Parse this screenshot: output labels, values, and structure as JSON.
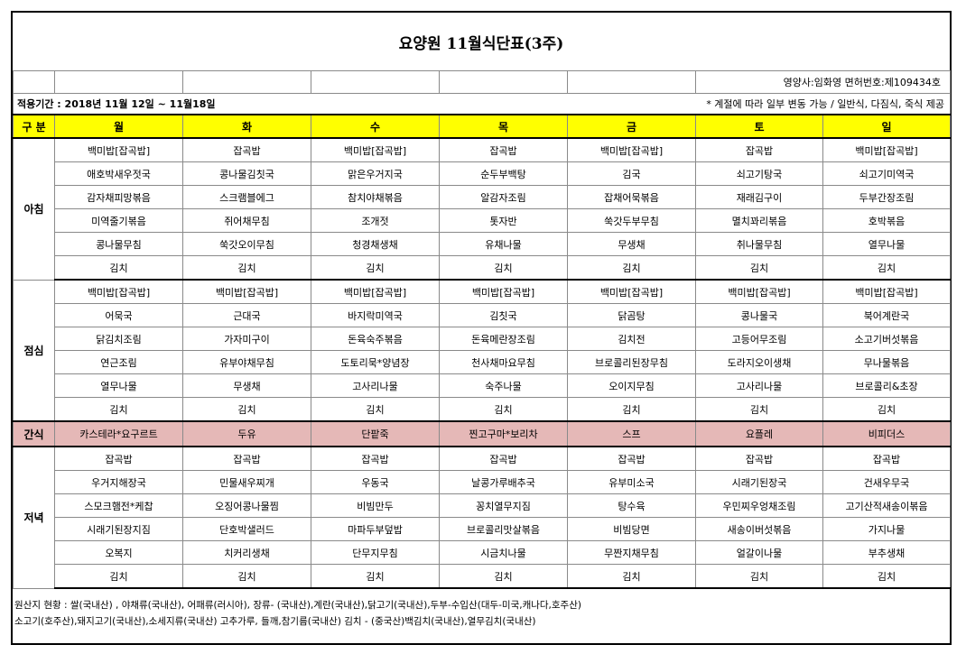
{
  "title": "요양원 11월식단표(3주)",
  "dietitian": "영양사:임화영   면허번호:제109434호",
  "period": "적용기간 : 2018년 11월 12일 ~ 11월18일",
  "note": "* 계절에 따라 일부 변동 가능 / 일반식, 다짐식, 죽식 제공",
  "header": {
    "category": "구 분",
    "days": [
      "월",
      "화",
      "수",
      "목",
      "금",
      "토",
      "일"
    ]
  },
  "meals": {
    "breakfast": {
      "label": "아침",
      "rows": [
        [
          "백미밥[잡곡밥]",
          "잡곡밥",
          "백미밥[잡곡밥]",
          "잡곡밥",
          "백미밥[잡곡밥]",
          "잡곡밥",
          "백미밥[잡곡밥]"
        ],
        [
          "애호박새우젓국",
          "콩나물김칫국",
          "맑은우거지국",
          "순두부백탕",
          "김국",
          "쇠고기탕국",
          "쇠고기미역국"
        ],
        [
          "감자채피망볶음",
          "스크램블에그",
          "참치야채볶음",
          "알감자조림",
          "잡채어묵볶음",
          "재래김구이",
          "두부간장조림"
        ],
        [
          "미역줄기볶음",
          "쥐어채무침",
          "조개젓",
          "톳자반",
          "쑥갓두부무침",
          "멸치꽈리볶음",
          "호박볶음"
        ],
        [
          "콩나물무침",
          "쑥갓오이무침",
          "청경채생채",
          "유채나물",
          "무생채",
          "취나물무침",
          "열무나물"
        ],
        [
          "김치",
          "김치",
          "김치",
          "김치",
          "김치",
          "김치",
          "김치"
        ]
      ]
    },
    "lunch": {
      "label": "점심",
      "rows": [
        [
          "백미밥[잡곡밥]",
          "백미밥[잡곡밥]",
          "백미밥[잡곡밥]",
          "백미밥[잡곡밥]",
          "백미밥[잡곡밥]",
          "백미밥[잡곡밥]",
          "백미밥[잡곡밥]"
        ],
        [
          "어묵국",
          "근대국",
          "바지락미역국",
          "김칫국",
          "닭곰탕",
          "콩나물국",
          "북어계란국"
        ],
        [
          "닭김치조림",
          "가자미구이",
          "돈육숙주볶음",
          "돈육메란장조림",
          "김치전",
          "고등어무조림",
          "소고기버섯볶음"
        ],
        [
          "연근조림",
          "유부야채무침",
          "도토리묵*양념장",
          "천사채마요무침",
          "브로콜리된장무침",
          "도라지오이생채",
          "무나물볶음"
        ],
        [
          "열무나물",
          "무생채",
          "고사리나물",
          "숙주나물",
          "오이지무침",
          "고사리나물",
          "브로콜리&초장"
        ],
        [
          "김치",
          "김치",
          "김치",
          "김치",
          "김치",
          "김치",
          "김치"
        ]
      ]
    },
    "snack": {
      "label": "간식",
      "items": [
        "카스테라*요구르트",
        "두유",
        "단팥죽",
        "찐고구마*보리차",
        "스프",
        "요플레",
        "비피더스"
      ]
    },
    "dinner": {
      "label": "저녁",
      "rows": [
        [
          "잡곡밥",
          "잡곡밥",
          "잡곡밥",
          "잡곡밥",
          "잡곡밥",
          "잡곡밥",
          "잡곡밥"
        ],
        [
          "우거지해장국",
          "민물새우찌개",
          "우동국",
          "날콩가루배추국",
          "유부미소국",
          "시래기된장국",
          "건새우무국"
        ],
        [
          "스모크햄전*케찹",
          "오징어콩나물찜",
          "비빔만두",
          "꽁치열무지짐",
          "탕수육",
          "우민찌우엉채조림",
          "고기산적새송이볶음"
        ],
        [
          "시래기된장지짐",
          "단호박샐러드",
          "마파두부덮밥",
          "브로콜리맛살볶음",
          "비빔당면",
          "새송이버섯볶음",
          "가지나물"
        ],
        [
          "오복지",
          "치커리생채",
          "단무지무침",
          "시금치나물",
          "무짠지채무침",
          "얼갈이나물",
          "부추생채"
        ],
        [
          "김치",
          "김치",
          "김치",
          "김치",
          "김치",
          "김치",
          "김치"
        ]
      ]
    }
  },
  "origin": {
    "line1": "원산지 현황 : 쌀(국내산) , 야채류(국내산), 어패류(러시아),  장류- (국내산),계란(국내산),닭고기(국내산),두부-수입산(대두-미국,캐나다,호주산)",
    "line2": "소고기(호주산),돼지고기(국내산),소세지류(국내산) 고추가루, 들깨,참기름(국내산) 김치 - (중국산)백김치(국내산),열무김치(국내산)"
  },
  "colors": {
    "header_bg": "#ffff00",
    "snack_bg": "#e5b8b7"
  }
}
